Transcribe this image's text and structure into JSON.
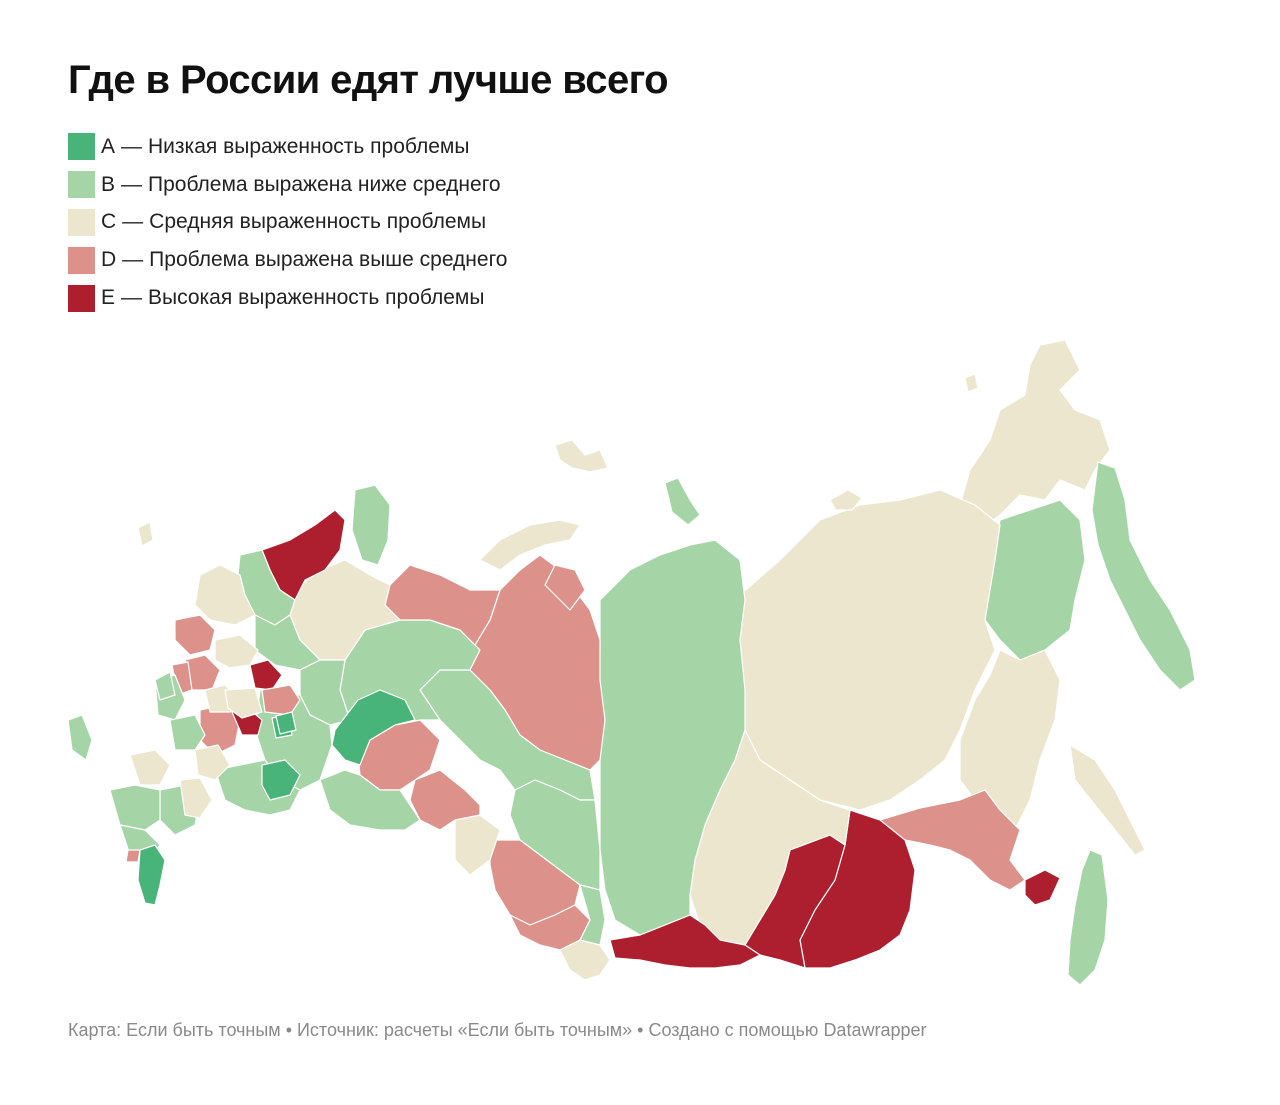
{
  "title": "Где в России едят лучше всего",
  "legend": [
    {
      "code": "A",
      "label": "Низкая выраженность проблемы",
      "color": "#48b47a"
    },
    {
      "code": "B",
      "label": "Проблема выражена ниже среднего",
      "color": "#a5d5a6"
    },
    {
      "code": "C",
      "label": "Средняя выраженность проблемы",
      "color": "#ece6cf"
    },
    {
      "code": "D",
      "label": "Проблема выражена выше среднего",
      "color": "#dc918a"
    },
    {
      "code": "E",
      "label": "Высокая выраженность проблемы",
      "color": "#ad1e2e"
    }
  ],
  "legend_separator": "—",
  "footer": "Карта: Если быть точным • Источник: расчеты «Если быть точным» • Создано с помощью Datawrapper"
}
